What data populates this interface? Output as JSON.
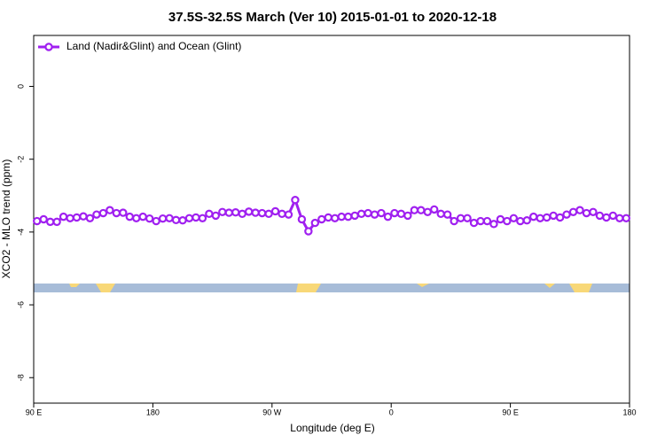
{
  "chart_data": {
    "type": "line",
    "title": "37.5S-32.5S March (Ver 10)   2015-01-01 to 2020-12-18",
    "x_label": "Longitude (deg E)",
    "y_label": "XCO2 - MLO trend (ppm)",
    "legend_position": "upper left",
    "grid": false,
    "xlim": [
      90,
      540
    ],
    "xticks": [
      {
        "value": 90,
        "label": "90 E"
      },
      180,
      {
        "value": 270,
        "label": "90 W"
      },
      {
        "value": 360,
        "label": "0"
      },
      {
        "value": 450,
        "label": "90 E"
      },
      {
        "value": 540,
        "label": "180"
      }
    ],
    "ylim": [
      -8.7,
      1.4
    ],
    "yticks": [
      0,
      -2,
      -4,
      -6,
      -8
    ],
    "x": [
      92.5,
      97.5,
      102.5,
      107.5,
      112.5,
      117.5,
      122.5,
      127.5,
      132.5,
      137.5,
      142.5,
      147.5,
      152.5,
      157.5,
      162.5,
      167.5,
      172.5,
      177.5,
      182.5,
      187.5,
      192.5,
      197.5,
      202.5,
      207.5,
      212.5,
      217.5,
      222.5,
      227.5,
      232.5,
      237.5,
      242.5,
      247.5,
      252.5,
      257.5,
      262.5,
      267.5,
      272.5,
      277.5,
      282.5,
      287.5,
      292.5,
      297.5,
      302.5,
      307.5,
      312.5,
      317.5,
      322.5,
      327.5,
      332.5,
      337.5,
      342.5,
      347.5,
      352.5,
      357.5,
      362.5,
      367.5,
      372.5,
      377.5,
      382.5,
      387.5,
      392.5,
      397.5,
      402.5,
      407.5,
      412.5,
      417.5,
      422.5,
      427.5,
      432.5,
      437.5,
      442.5,
      447.5,
      452.5,
      457.5,
      462.5,
      467.5,
      472.5,
      477.5,
      482.5,
      487.5,
      492.5,
      497.5,
      502.5,
      507.5,
      512.5,
      517.5,
      522.5,
      527.5,
      532.5,
      537.5
    ],
    "series": [
      {
        "name": "Land (Nadir&Glint) and Ocean (Glint)",
        "color": "#a020f0",
        "values": [
          -3.7,
          -3.65,
          -3.72,
          -3.72,
          -3.58,
          -3.62,
          -3.6,
          -3.57,
          -3.62,
          -3.52,
          -3.48,
          -3.4,
          -3.48,
          -3.47,
          -3.58,
          -3.62,
          -3.58,
          -3.63,
          -3.7,
          -3.63,
          -3.62,
          -3.67,
          -3.68,
          -3.62,
          -3.6,
          -3.62,
          -3.5,
          -3.55,
          -3.45,
          -3.47,
          -3.46,
          -3.5,
          -3.44,
          -3.47,
          -3.48,
          -3.5,
          -3.43,
          -3.5,
          -3.52,
          -3.12,
          -3.65,
          -3.98,
          -3.75,
          -3.65,
          -3.6,
          -3.62,
          -3.58,
          -3.58,
          -3.55,
          -3.5,
          -3.48,
          -3.52,
          -3.48,
          -3.58,
          -3.48,
          -3.5,
          -3.55,
          -3.4,
          -3.4,
          -3.45,
          -3.38,
          -3.5,
          -3.52,
          -3.7,
          -3.62,
          -3.62,
          -3.75,
          -3.7,
          -3.7,
          -3.78,
          -3.65,
          -3.7,
          -3.62,
          -3.7,
          -3.68,
          -3.58,
          -3.62,
          -3.6,
          -3.55,
          -3.6,
          -3.52,
          -3.45,
          -3.4,
          -3.48,
          -3.45,
          -3.55,
          -3.6,
          -3.55,
          -3.62,
          -3.62
        ]
      }
    ]
  }
}
